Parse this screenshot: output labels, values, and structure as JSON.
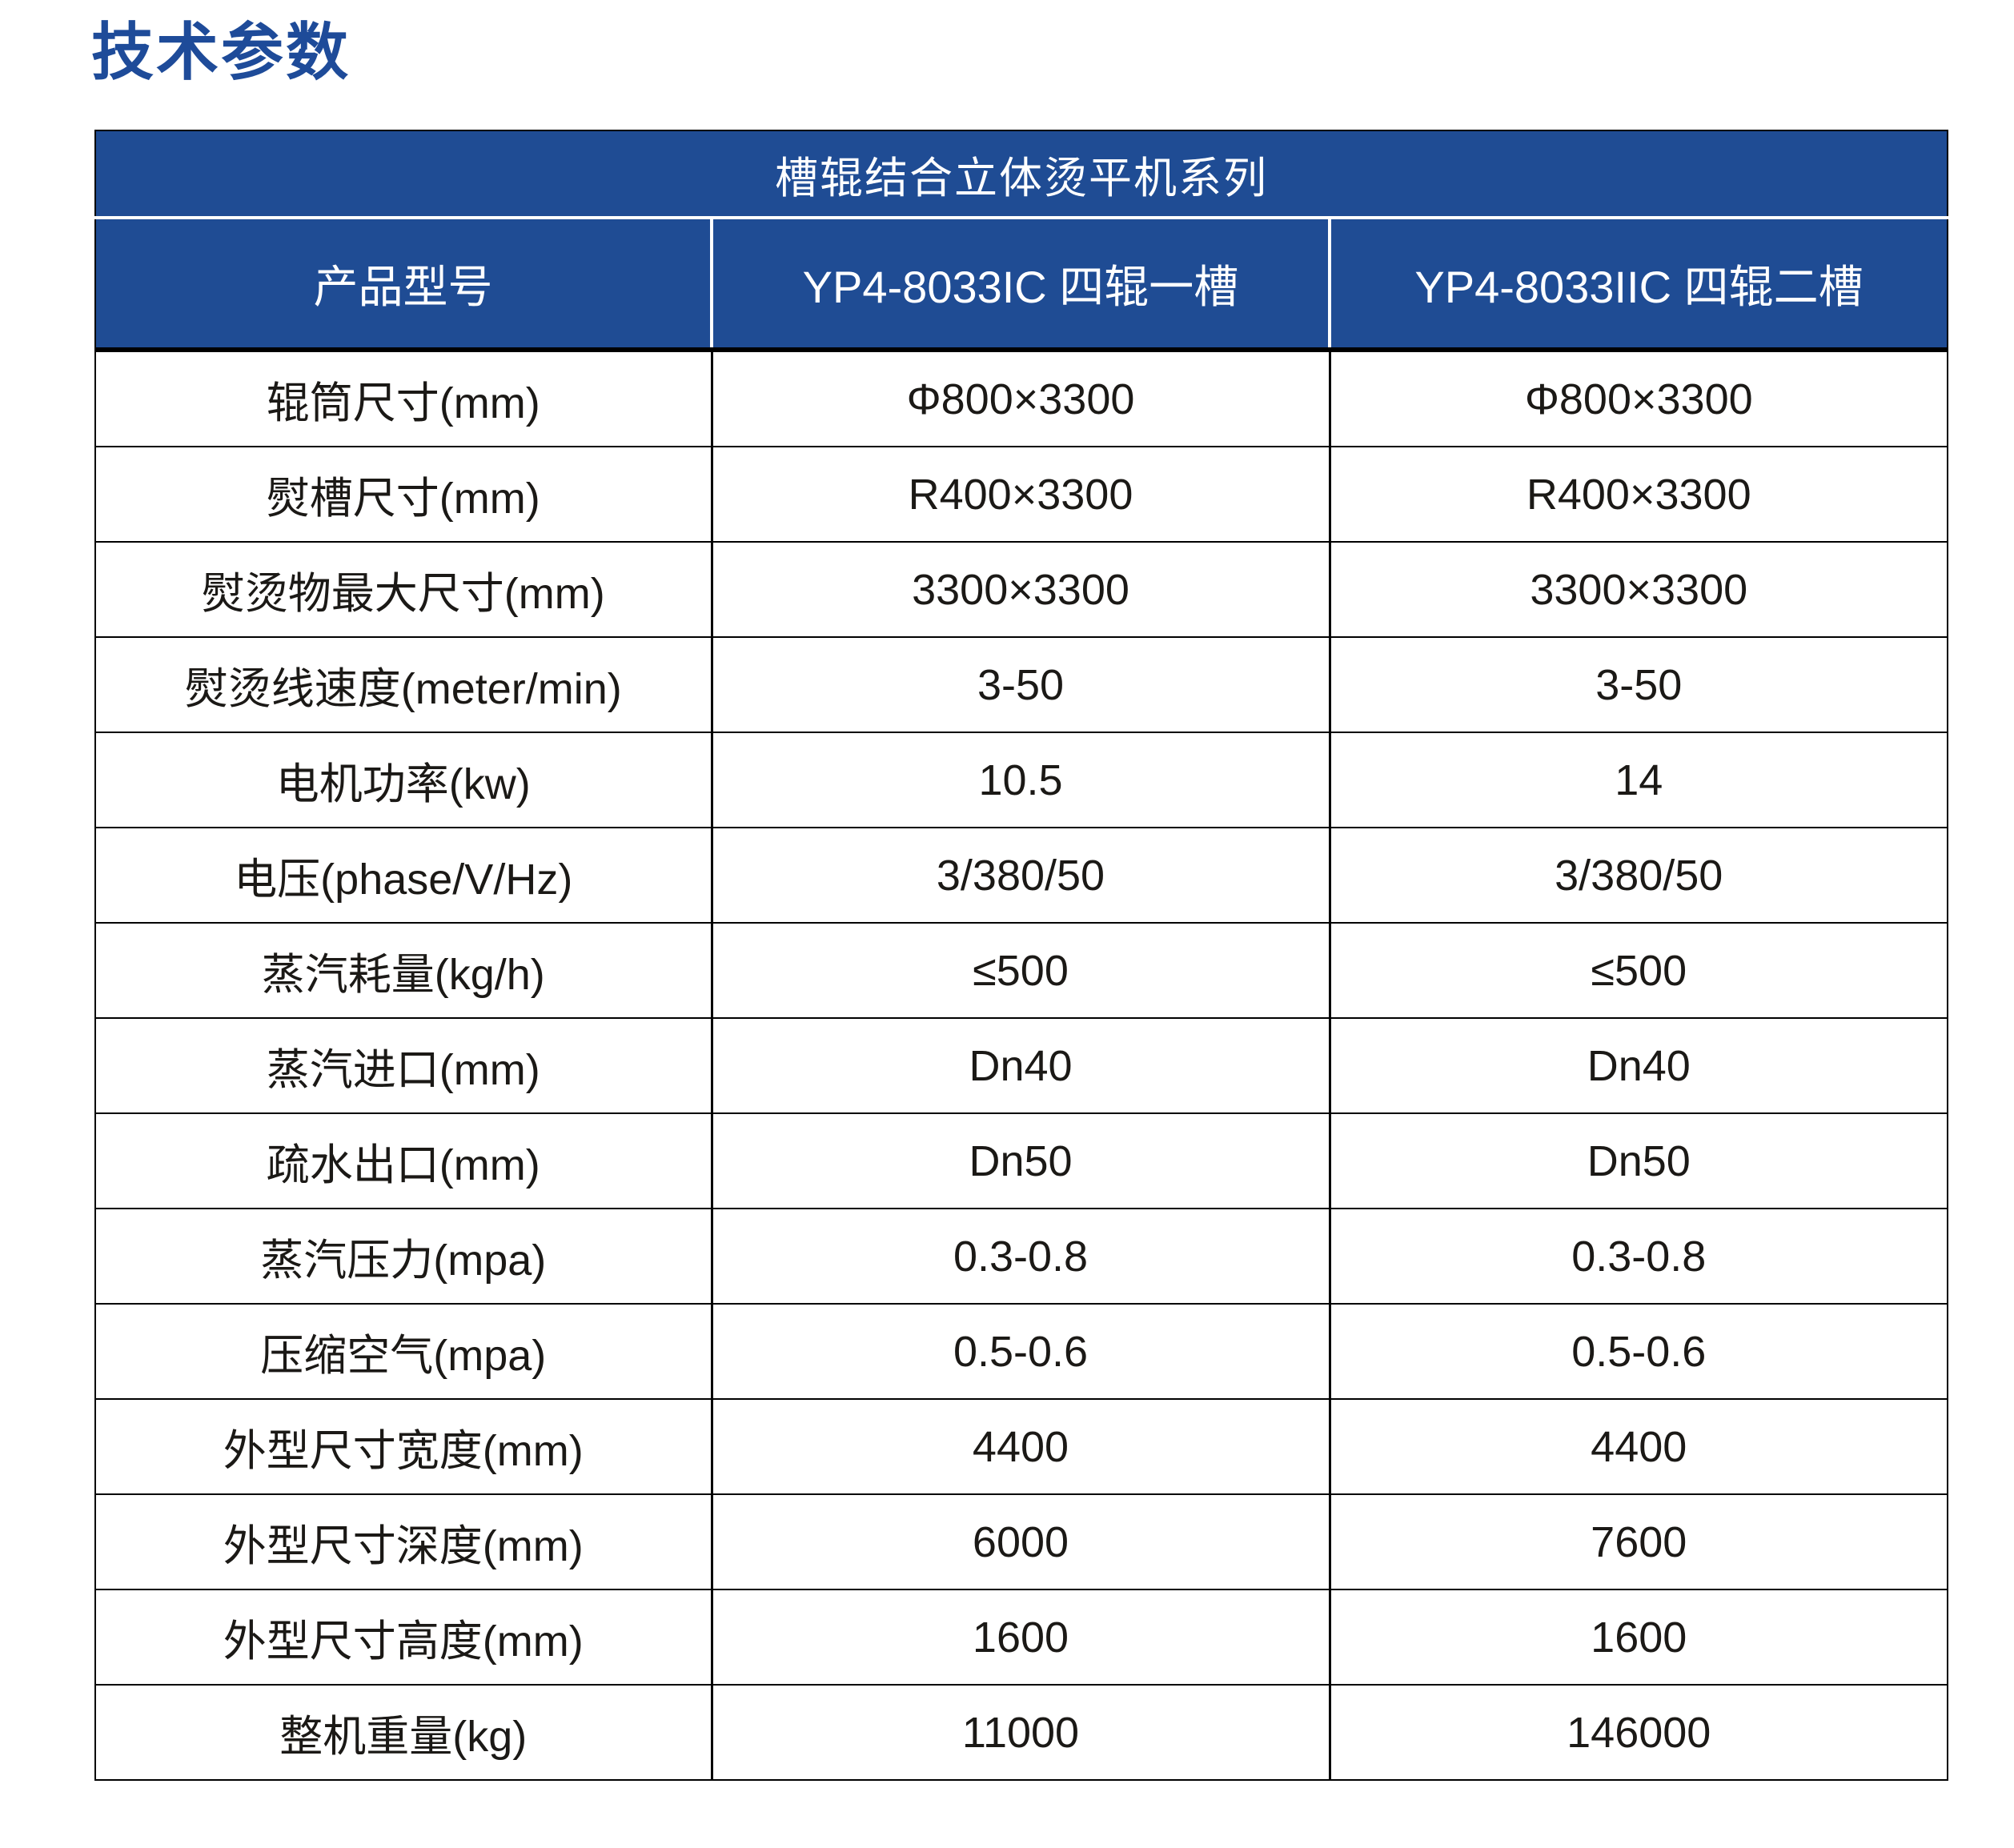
{
  "title": "技术参数",
  "colors": {
    "title_blue": "#1E4B99",
    "header_bg": "#1F4C94",
    "header_text": "#FFFFFF",
    "body_text": "#1B1916",
    "border": "#000000"
  },
  "table": {
    "series_title": "槽辊结合立体烫平机系列",
    "columns": [
      {
        "label": "产品型号"
      },
      {
        "label": "YP4-8033IC 四辊一槽"
      },
      {
        "label": "YP4-8033IIC 四辊二槽"
      }
    ],
    "rows": [
      {
        "label": "辊筒尺寸(mm)",
        "values": [
          "Φ800×3300",
          "Φ800×3300"
        ]
      },
      {
        "label": "熨槽尺寸(mm)",
        "values": [
          "R400×3300",
          "R400×3300"
        ]
      },
      {
        "label": "熨烫物最大尺寸(mm)",
        "values": [
          "3300×3300",
          "3300×3300"
        ]
      },
      {
        "label": "熨烫线速度(meter/min)",
        "values": [
          "3-50",
          "3-50"
        ]
      },
      {
        "label": "电机功率(kw)",
        "values": [
          "10.5",
          "14"
        ]
      },
      {
        "label": "电压(phase/V/Hz)",
        "values": [
          "3/380/50",
          "3/380/50"
        ]
      },
      {
        "label": "蒸汽耗量(kg/h)",
        "values": [
          "≤500",
          "≤500"
        ]
      },
      {
        "label": "蒸汽进口(mm)",
        "values": [
          "Dn40",
          "Dn40"
        ]
      },
      {
        "label": "疏水出口(mm)",
        "values": [
          "Dn50",
          "Dn50"
        ]
      },
      {
        "label": "蒸汽压力(mpa)",
        "values": [
          "0.3-0.8",
          "0.3-0.8"
        ]
      },
      {
        "label": "压缩空气(mpa)",
        "values": [
          "0.5-0.6",
          "0.5-0.6"
        ]
      },
      {
        "label": "外型尺寸宽度(mm)",
        "values": [
          "4400",
          "4400"
        ]
      },
      {
        "label": "外型尺寸深度(mm)",
        "values": [
          "6000",
          "7600"
        ]
      },
      {
        "label": "外型尺寸高度(mm)",
        "values": [
          "1600",
          "1600"
        ]
      },
      {
        "label": "整机重量(kg)",
        "values": [
          "11000",
          "146000"
        ]
      }
    ]
  }
}
